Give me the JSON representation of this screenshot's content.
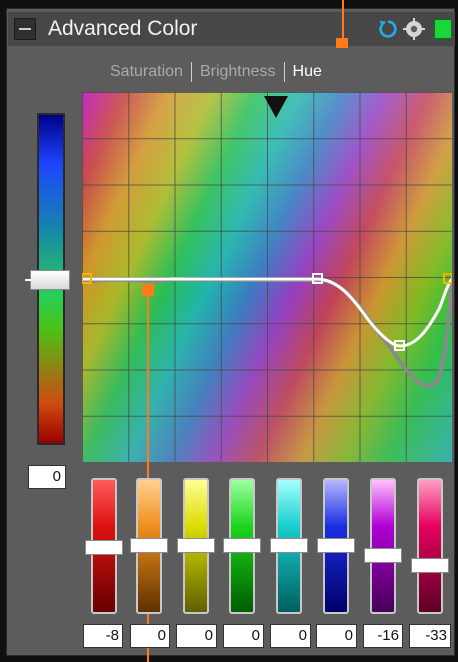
{
  "panel": {
    "title": "Advanced Color",
    "icons": [
      "collapse-icon",
      "refresh-icon",
      "gear-icon",
      "green-status-icon"
    ]
  },
  "tabs": [
    {
      "label": "Saturation",
      "active": false
    },
    {
      "label": "Brightness",
      "active": false
    },
    {
      "label": "Hue",
      "active": true
    }
  ],
  "curve": {
    "control_points": [
      "point-1",
      "point-2",
      "point-3",
      "point-4"
    ],
    "marker": "top-marker-arrow"
  },
  "vertical_slider": {
    "value": "0"
  },
  "channel_values": [
    "-8",
    "0",
    "0",
    "0",
    "0",
    "0",
    "-16",
    "-33"
  ],
  "colors": {
    "panel_bg": "#5c5c5c",
    "accent_orange": "#ff7a18",
    "active_tab": "#ffffff",
    "inactive_tab": "#aaaaaa"
  }
}
